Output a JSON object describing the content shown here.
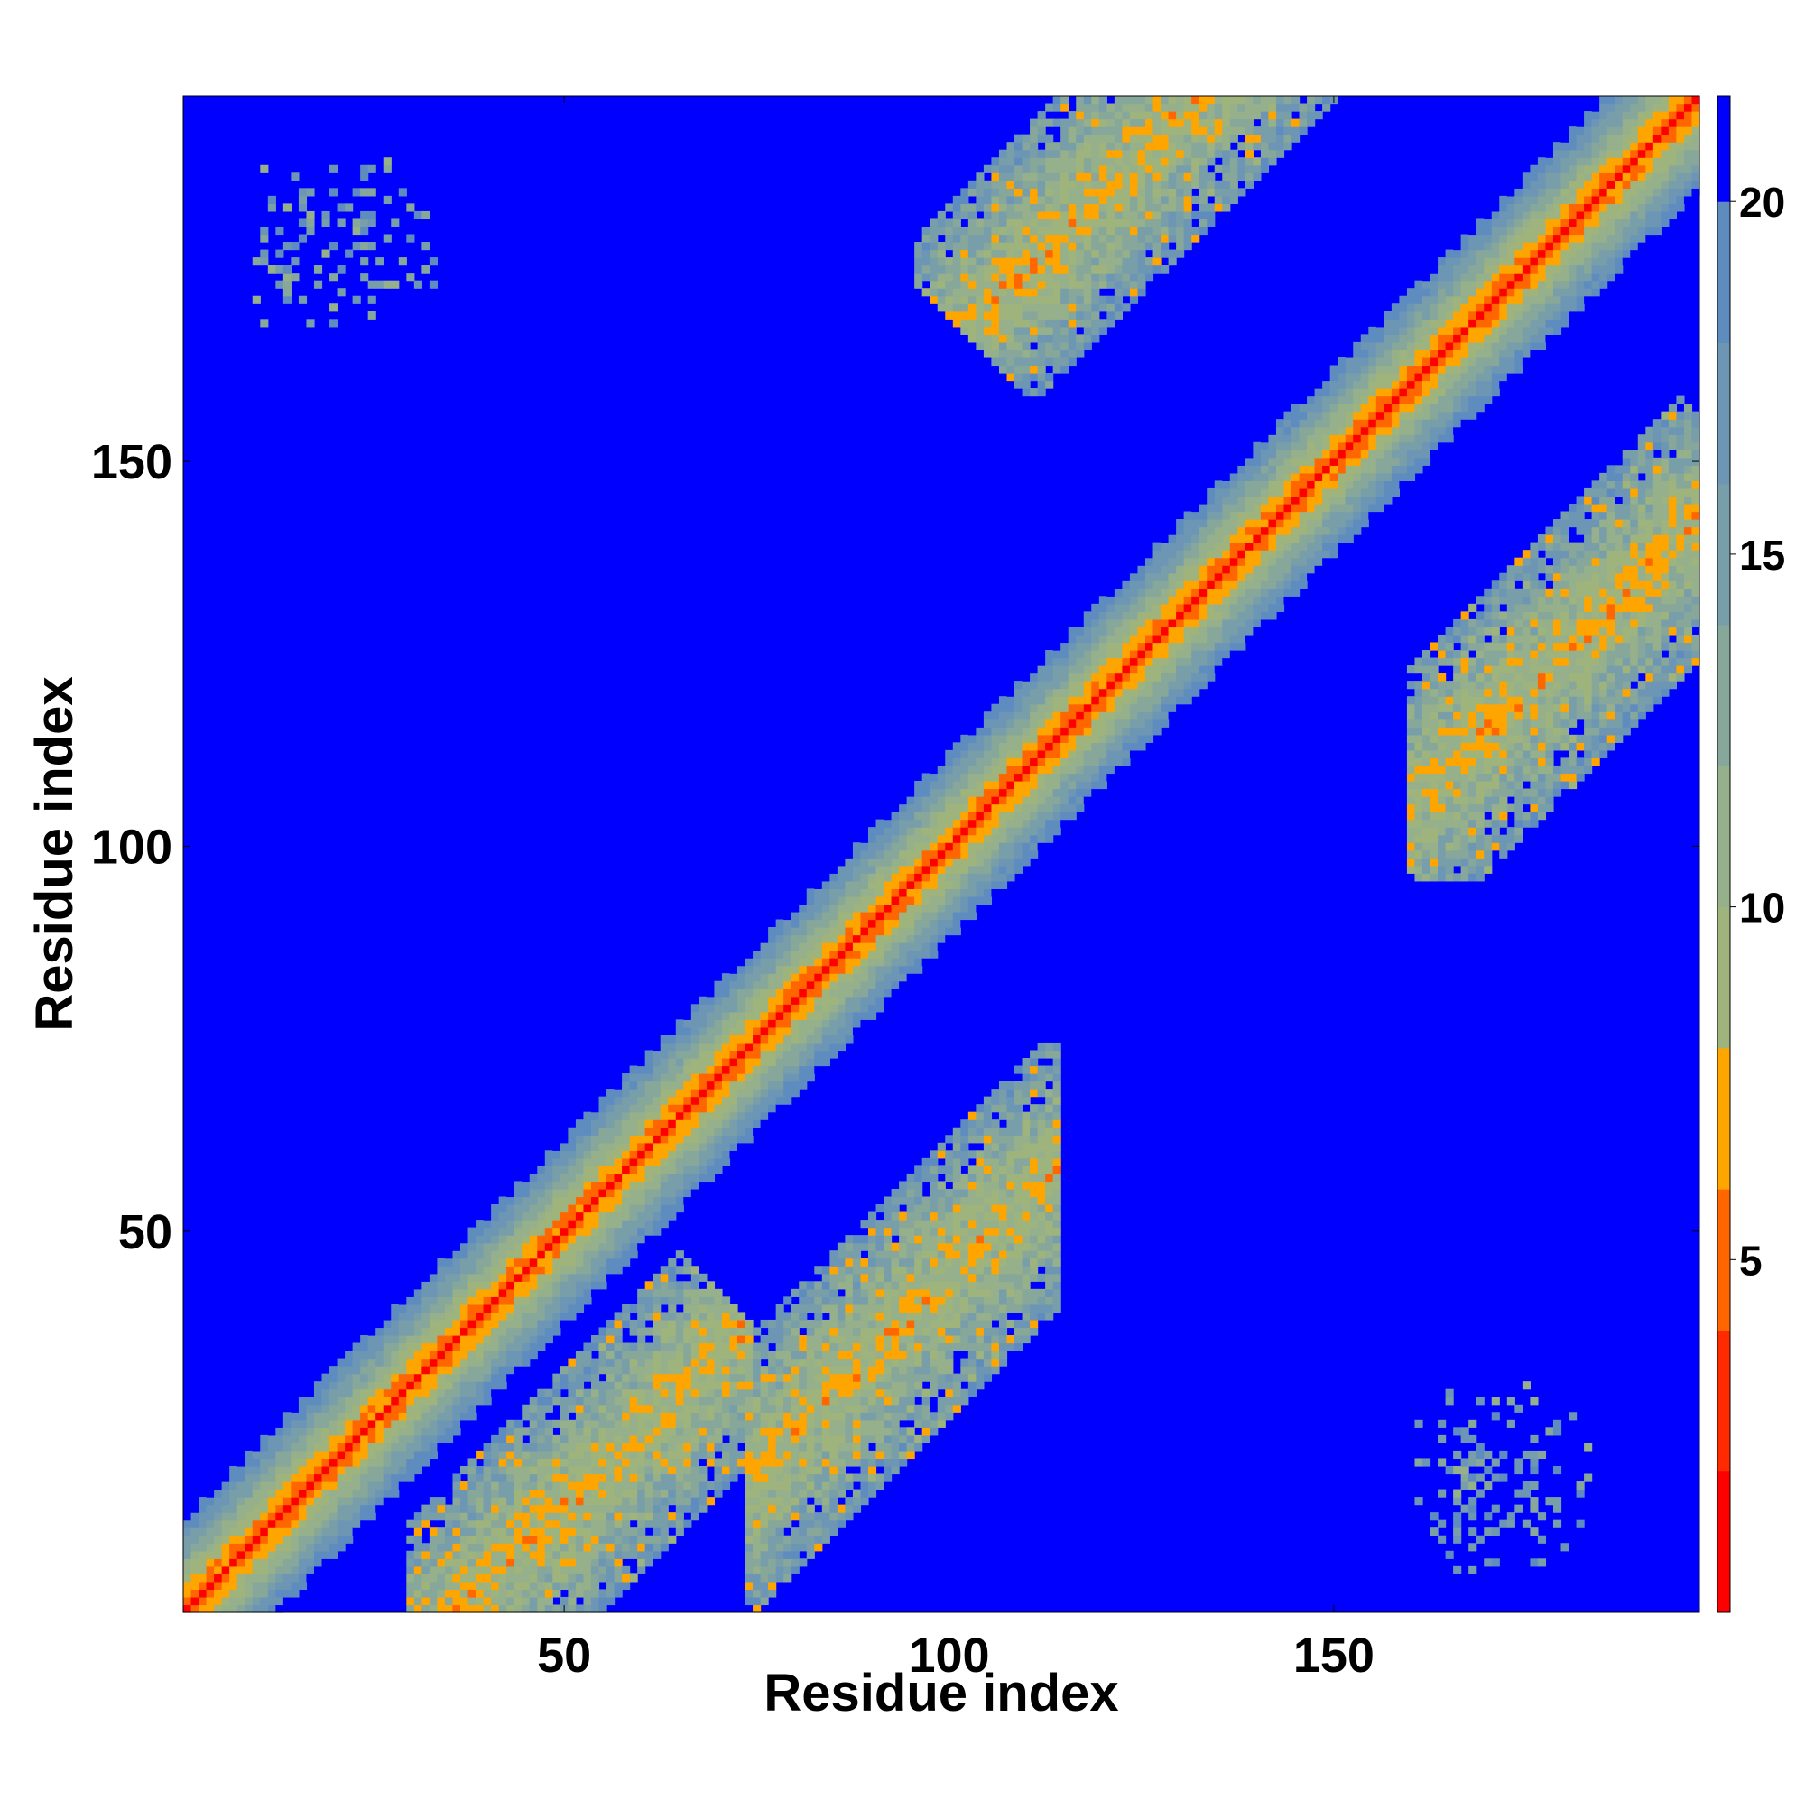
{
  "chart_data": {
    "type": "heatmap",
    "title": "",
    "xlabel": "Residue index",
    "ylabel": "Residue index",
    "n_residues": 197,
    "xlim": [
      1,
      197
    ],
    "ylim": [
      1,
      197
    ],
    "x_ticks": [
      50,
      100,
      150
    ],
    "x_tick_labels": [
      "50",
      "100",
      "150"
    ],
    "y_ticks": [
      50,
      100,
      150
    ],
    "y_tick_labels": [
      "50",
      "100",
      "150"
    ],
    "value_range": [
      0,
      21.5
    ],
    "colorbar": {
      "ticks": [
        5,
        10,
        15,
        20
      ],
      "tick_labels": [
        "5",
        "10",
        "15",
        "20"
      ],
      "min": 0,
      "max": 21.5
    },
    "color_levels": [
      {
        "max": 2,
        "color": "#ff0000"
      },
      {
        "max": 4,
        "color": "#ff2a00"
      },
      {
        "max": 6,
        "color": "#ff6600"
      },
      {
        "max": 8,
        "color": "#ffa500"
      },
      {
        "max": 10,
        "color": "#9fb47d"
      },
      {
        "max": 12,
        "color": "#95b08a"
      },
      {
        "max": 14,
        "color": "#86a79a"
      },
      {
        "max": 16,
        "color": "#789eaa"
      },
      {
        "max": 18,
        "color": "#6d96b5"
      },
      {
        "max": 20,
        "color": "#5f8cbf"
      },
      {
        "max": 21.5,
        "color": "#0000ff"
      }
    ],
    "structure": {
      "diagonal": "contact band along i = j",
      "antiparallel_contacts": [
        {
          "center": [
            52,
            16
          ],
          "i_range": [
            30,
            74
          ],
          "j_range": [
            1,
            58
          ]
        },
        {
          "center": [
            94,
            38
          ],
          "i_range": [
            74,
            114
          ],
          "j_range": [
            1,
            74
          ]
        },
        {
          "center": [
            125,
            190
          ],
          "i_range": [
            96,
            156
          ],
          "j_range": [
            150,
            197
          ]
        },
        {
          "center": [
            180,
            125
          ],
          "i_range": [
            160,
            197
          ],
          "j_range": [
            96,
            158
          ]
        }
      ],
      "parallel_contacts": [
        {
          "center": [
            20,
            178
          ],
          "i_range": [
            10,
            40
          ],
          "j_range": [
            168,
            192
          ]
        },
        {
          "center": [
            170,
            18
          ],
          "i_range": [
            160,
            186
          ],
          "j_range": [
            6,
            34
          ]
        }
      ]
    },
    "grid": false,
    "legend": "colorbar-right"
  }
}
